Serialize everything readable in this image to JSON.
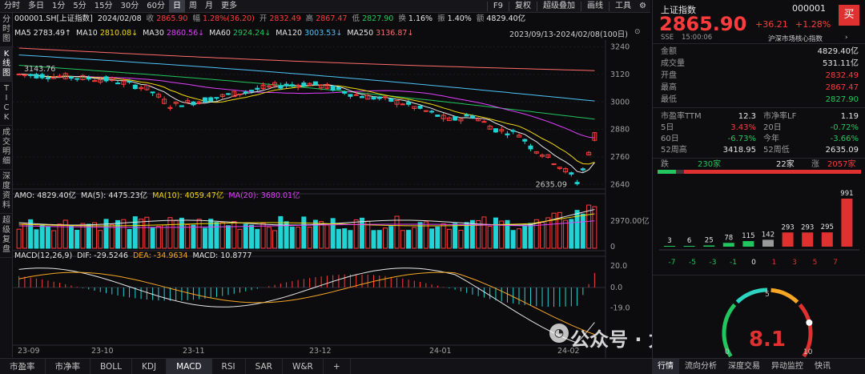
{
  "toolbar": {
    "periods": [
      "分时",
      "多日",
      "1分",
      "5分",
      "15分",
      "30分",
      "60分",
      "日",
      "周",
      "月",
      "更多"
    ],
    "active_period": "日",
    "right_items": [
      "F9",
      "复权",
      "超级叠加",
      "画线",
      "工具"
    ],
    "gear_icon": "gear-icon"
  },
  "left_tabs": [
    {
      "label": "分\n时\n图"
    },
    {
      "label": "K\n线\n图"
    },
    {
      "label": "T\nI\nC\nK"
    },
    {
      "label": "成\n交\n明\n细"
    },
    {
      "label": "深\n度\n资\n料"
    },
    {
      "label": "超\n级\n复\n盘"
    }
  ],
  "quote_row": {
    "code_name": "000001.SH[上证指数]",
    "date": "2024/02/08",
    "close_label": "收",
    "close": "2865.90",
    "change_label": "幅",
    "change": "1.28%(36.20)",
    "open_label": "开",
    "open": "2832.49",
    "high_label": "高",
    "high": "2867.47",
    "low_label": "低",
    "low": "2827.90",
    "turnover_label": "换",
    "turnover": "1.16%",
    "amp_label": "振",
    "amp": "1.40%",
    "amt_label": "额",
    "amt": "4829.40亿"
  },
  "ma_row": {
    "items": [
      {
        "label": "MA5",
        "value": "2783.49",
        "arrow": "↑",
        "color": "#e6e6e6"
      },
      {
        "label": "MA10",
        "value": "2810.08",
        "arrow": "↓",
        "color": "#f5d90a"
      },
      {
        "label": "MA30",
        "value": "2860.56",
        "arrow": "↓",
        "color": "#e040fb"
      },
      {
        "label": "MA60",
        "value": "2924.24",
        "arrow": "↓",
        "color": "#22c55e"
      },
      {
        "label": "MA120",
        "value": "3003.53",
        "arrow": "↓",
        "color": "#4fc3f7"
      },
      {
        "label": "MA250",
        "value": "3136.87",
        "arrow": "↓",
        "color": "#ff6b6b"
      }
    ],
    "range": "2023/09/13-2024/02/08(100日)"
  },
  "kline": {
    "yticks": [
      "3240",
      "3120",
      "3000",
      "2880",
      "2760",
      "2640"
    ],
    "hi_label": "3143.76",
    "lo_label": "2635.09"
  },
  "volume": {
    "label": "AMO: 4829.40亿",
    "ma5": "MA(5): 4475.23亿",
    "ma10": "MA(10): 4059.47亿",
    "ma20": "MA(20): 3680.01亿",
    "yticks": [
      "2970.00亿",
      "0"
    ]
  },
  "macd": {
    "label": "MACD(12,26,9)",
    "dif": "DIF: -29.5246",
    "dea": "DEA: -34.9634",
    "macd": "MACD: 10.8777",
    "yticks": [
      "20.0",
      "0.0",
      "-19.0"
    ]
  },
  "xaxis": [
    "23-09",
    "23-10",
    "23-11",
    "23-12",
    "24-01",
    "24-02"
  ],
  "watermark": "公众号 · 太平洋的回忆",
  "bottom_tabs": [
    "市盈率",
    "市净率",
    "BOLL",
    "KDJ",
    "MACD",
    "RSI",
    "SAR",
    "W&R",
    "+"
  ],
  "bottom_active": "MACD",
  "right_panel": {
    "name": "上证指数",
    "code": "000001",
    "buy": "买",
    "price": "2865.90",
    "change": "+36.21",
    "pct": "+1.28%",
    "exchange": "SSE",
    "time": "15:00:06",
    "related": "沪深市场核心指数",
    "stats": [
      {
        "label": "金额",
        "value": "4829.40亿",
        "cls": "white"
      },
      {
        "label": "成交量",
        "value": "531.11亿",
        "cls": "white"
      },
      {
        "label": "开盘",
        "value": "2832.49",
        "cls": "red"
      },
      {
        "label": "最高",
        "value": "2867.47",
        "cls": "red"
      },
      {
        "label": "最低",
        "value": "2827.90",
        "cls": "green"
      }
    ],
    "pe_label": "市盈率TTM",
    "pe": "12.3",
    "pb_label": "市净率LF",
    "pb": "1.19",
    "d5_label": "5日",
    "d5": "3.43%",
    "d20_label": "20日",
    "d20": "-0.72%",
    "d60_label": "60日",
    "d60": "-6.73%",
    "ytd_label": "今年",
    "ytd": "-3.66%",
    "w52h_label": "52周高",
    "w52h": "3418.95",
    "w52l_label": "52周低",
    "w52l": "2635.09",
    "fall_label": "跌",
    "fall": "230家",
    "flat_label": "22家",
    "rise_label": "涨",
    "rise": "2057家",
    "hist_labels": [
      "-7",
      "-5",
      "-3",
      "-1",
      "0",
      "1",
      "3",
      "5",
      "7"
    ],
    "gauge_values": [
      "0",
      "5",
      "10"
    ],
    "gauge_reading": "8.1"
  },
  "distribution": {
    "type": "bar",
    "values": [
      3,
      6,
      25,
      78,
      115,
      142,
      293,
      293,
      295,
      991
    ]
  },
  "right_bottom_tabs": [
    "行情",
    "流向分析",
    "深度交易",
    "异动监控",
    "快讯"
  ],
  "right_bottom_active": "行情"
}
